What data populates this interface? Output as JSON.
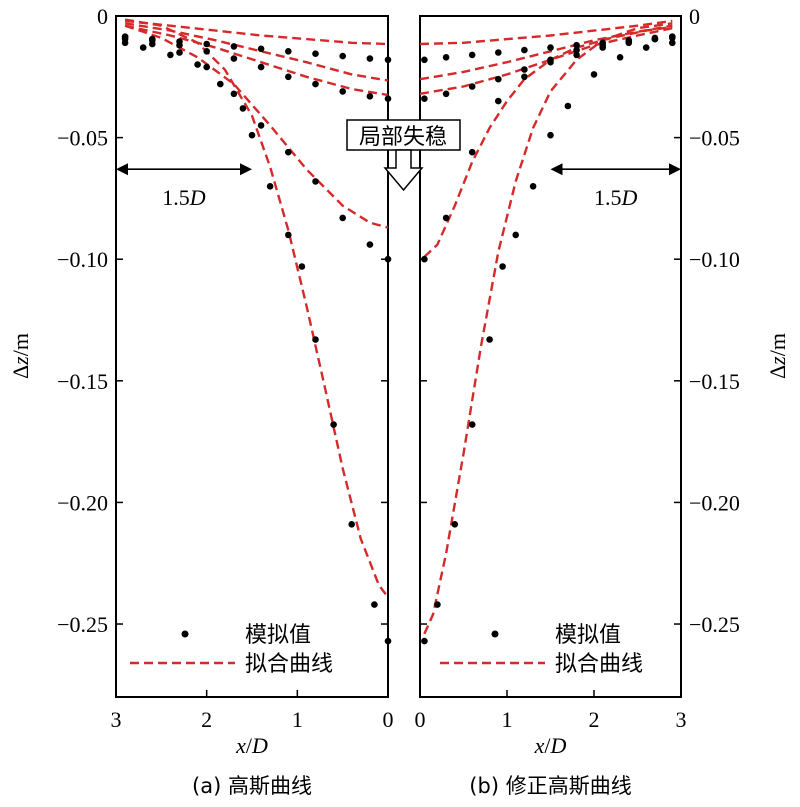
{
  "colors": {
    "fit": "#d42a2a",
    "points": "#000000",
    "axis": "#000000"
  },
  "annotation": {
    "label": "局部失稳",
    "arrow_icon": "hollow-down-arrow-icon"
  },
  "chart_data": [
    {
      "type": "scatter",
      "panel": "a",
      "caption": "(a) 高斯曲线",
      "xlabel": "x/D",
      "ylabel": "Δz/m",
      "xlim": [
        3,
        0
      ],
      "ylim": [
        -0.28,
        0
      ],
      "x_ticks": [
        "3",
        "2",
        "1",
        "0"
      ],
      "y_ticks": [
        "0",
        "−0.05",
        "−0.10",
        "−0.15",
        "−0.20",
        "−0.25"
      ],
      "dimension_label": "1.5D",
      "legend": {
        "points_label": "模拟值",
        "fit_label": "拟合曲线",
        "position": "bottom-right"
      },
      "point_series": [
        {
          "x": [
            2.9,
            2.6,
            2.3,
            2.0,
            1.7,
            1.4,
            1.1,
            0.8,
            0.5,
            0.2,
            0.0
          ],
          "y": [
            -0.0085,
            -0.0095,
            -0.0105,
            -0.0115,
            -0.0125,
            -0.0135,
            -0.0145,
            -0.0155,
            -0.0165,
            -0.0175,
            -0.018
          ]
        },
        {
          "x": [
            2.9,
            2.6,
            2.3,
            2.0,
            1.7,
            1.4,
            1.1,
            0.8,
            0.5,
            0.2,
            0.0
          ],
          "y": [
            -0.0085,
            -0.01,
            -0.012,
            -0.0145,
            -0.0175,
            -0.021,
            -0.025,
            -0.028,
            -0.031,
            -0.033,
            -0.034
          ]
        },
        {
          "x": [
            2.9,
            2.6,
            2.3,
            2.0,
            1.7,
            1.4,
            1.1,
            0.8,
            0.5,
            0.2,
            0.0
          ],
          "y": [
            -0.0095,
            -0.0115,
            -0.015,
            -0.021,
            -0.032,
            -0.045,
            -0.056,
            -0.068,
            -0.083,
            -0.094,
            -0.1
          ]
        },
        {
          "x": [
            2.9,
            2.7,
            2.4,
            2.1,
            1.85,
            1.6,
            1.5,
            1.3,
            1.1,
            0.95,
            0.8,
            0.6,
            0.4,
            0.15,
            0.0
          ],
          "y": [
            -0.011,
            -0.013,
            -0.016,
            -0.02,
            -0.028,
            -0.038,
            -0.049,
            -0.07,
            -0.09,
            -0.103,
            -0.133,
            -0.168,
            -0.209,
            -0.242,
            -0.257
          ]
        }
      ],
      "fit_series": [
        {
          "x": [
            2.9,
            2.4,
            1.9,
            1.4,
            0.9,
            0.4,
            0.0
          ],
          "y": [
            -0.002,
            -0.004,
            -0.006,
            -0.008,
            -0.0095,
            -0.011,
            -0.0115
          ]
        },
        {
          "x": [
            2.9,
            2.4,
            1.9,
            1.4,
            0.9,
            0.4,
            0.0
          ],
          "y": [
            -0.003,
            -0.006,
            -0.01,
            -0.0145,
            -0.019,
            -0.024,
            -0.0265
          ]
        },
        {
          "x": [
            2.9,
            2.4,
            1.9,
            1.4,
            0.9,
            0.4,
            0.0
          ],
          "y": [
            -0.004,
            -0.008,
            -0.013,
            -0.019,
            -0.025,
            -0.03,
            -0.0325
          ]
        },
        {
          "x": [
            2.9,
            2.5,
            2.1,
            1.7,
            1.3,
            0.9,
            0.5,
            0.2,
            0.0
          ],
          "y": [
            -0.004,
            -0.009,
            -0.017,
            -0.028,
            -0.045,
            -0.063,
            -0.078,
            -0.085,
            -0.087
          ]
        },
        {
          "x": [
            2.9,
            2.5,
            2.1,
            1.8,
            1.5,
            1.3,
            1.1,
            0.9,
            0.7,
            0.5,
            0.3,
            0.1,
            0.0
          ],
          "y": [
            -0.0015,
            -0.004,
            -0.011,
            -0.022,
            -0.041,
            -0.062,
            -0.088,
            -0.119,
            -0.152,
            -0.186,
            -0.215,
            -0.234,
            -0.239
          ]
        }
      ]
    },
    {
      "type": "scatter",
      "panel": "b",
      "caption": "(b) 修正高斯曲线",
      "xlabel": "x/D",
      "ylabel": "Δz/m",
      "xlim": [
        0,
        3
      ],
      "ylim": [
        -0.28,
        0
      ],
      "x_ticks": [
        "0",
        "1",
        "2",
        "3"
      ],
      "y_ticks": [
        "0",
        "−0.05",
        "−0.10",
        "−0.15",
        "−0.20",
        "−0.25"
      ],
      "dimension_label": "1.5D",
      "legend": {
        "points_label": "模拟值",
        "fit_label": "拟合曲线",
        "position": "bottom-right"
      },
      "point_series": [
        {
          "x": [
            0.05,
            0.3,
            0.6,
            0.9,
            1.2,
            1.5,
            1.8,
            2.1,
            2.4,
            2.7,
            2.9
          ],
          "y": [
            -0.018,
            -0.017,
            -0.016,
            -0.015,
            -0.014,
            -0.013,
            -0.012,
            -0.011,
            -0.01,
            -0.009,
            -0.0085
          ]
        },
        {
          "x": [
            0.05,
            0.3,
            0.6,
            0.9,
            1.2,
            1.5,
            1.8,
            2.1,
            2.4,
            2.7,
            2.9
          ],
          "y": [
            -0.034,
            -0.032,
            -0.029,
            -0.026,
            -0.022,
            -0.019,
            -0.016,
            -0.013,
            -0.011,
            -0.0095,
            -0.0085
          ]
        },
        {
          "x": [
            0.05,
            0.3,
            0.6,
            0.9,
            1.2,
            1.5,
            1.8,
            2.1,
            2.4,
            2.7,
            2.9
          ],
          "y": [
            -0.1,
            -0.083,
            -0.056,
            -0.035,
            -0.025,
            -0.018,
            -0.014,
            -0.012,
            -0.0105,
            -0.0095,
            -0.009
          ]
        },
        {
          "x": [
            0.05,
            0.2,
            0.4,
            0.6,
            0.8,
            0.95,
            1.1,
            1.3,
            1.5,
            1.7,
            2.0,
            2.3,
            2.6,
            2.9
          ],
          "y": [
            -0.257,
            -0.242,
            -0.209,
            -0.168,
            -0.133,
            -0.103,
            -0.09,
            -0.07,
            -0.049,
            -0.037,
            -0.024,
            -0.017,
            -0.013,
            -0.011
          ]
        }
      ],
      "fit_series": [
        {
          "x": [
            0.0,
            0.5,
            1.0,
            1.5,
            2.0,
            2.5,
            2.9
          ],
          "y": [
            -0.0115,
            -0.011,
            -0.0095,
            -0.008,
            -0.006,
            -0.004,
            -0.002
          ]
        },
        {
          "x": [
            0.0,
            0.5,
            1.0,
            1.5,
            2.0,
            2.5,
            2.9
          ],
          "y": [
            -0.026,
            -0.023,
            -0.019,
            -0.0145,
            -0.01,
            -0.0065,
            -0.004
          ]
        },
        {
          "x": [
            0.0,
            0.5,
            1.0,
            1.5,
            2.0,
            2.5,
            2.9
          ],
          "y": [
            -0.032,
            -0.029,
            -0.024,
            -0.018,
            -0.012,
            -0.008,
            -0.005
          ]
        },
        {
          "x": [
            0.05,
            0.2,
            0.4,
            0.6,
            0.8,
            1.0,
            1.2,
            1.5,
            1.8,
            2.2,
            2.6,
            2.9
          ],
          "y": [
            -0.099,
            -0.094,
            -0.078,
            -0.06,
            -0.046,
            -0.035,
            -0.026,
            -0.018,
            -0.013,
            -0.009,
            -0.006,
            -0.0045
          ]
        },
        {
          "x": [
            0.05,
            0.15,
            0.3,
            0.5,
            0.7,
            0.9,
            1.1,
            1.3,
            1.5,
            1.8,
            2.1,
            2.5,
            2.9
          ],
          "y": [
            -0.254,
            -0.246,
            -0.221,
            -0.18,
            -0.136,
            -0.097,
            -0.068,
            -0.046,
            -0.031,
            -0.018,
            -0.01,
            -0.005,
            -0.003
          ]
        }
      ]
    }
  ]
}
